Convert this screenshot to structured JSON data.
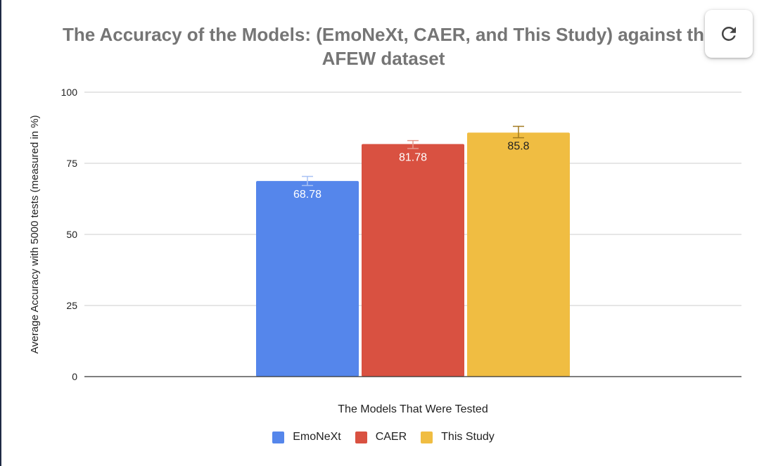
{
  "chart_data": {
    "type": "bar",
    "title_lines": [
      "The Accuracy of the Models: (EmoNeXt, CAER, and This Study) against th",
      "AFEW dataset"
    ],
    "xlabel": "The Models That Were Tested",
    "ylabel": "Average Accuracy with 5000 tests (measured in %)",
    "ylim": [
      0,
      100
    ],
    "yticks": [
      "0",
      "25",
      "50",
      "75",
      "100"
    ],
    "ytick_values": [
      0,
      25,
      50,
      75,
      100
    ],
    "grid": true,
    "legend_position": "bottom",
    "series": [
      {
        "name": "EmoNeXt",
        "value": 68.78,
        "label": "68.78",
        "error": [
          67.2,
          70.4
        ],
        "color": "#5586eb",
        "error_color": "#a9c2f4"
      },
      {
        "name": "CAER",
        "value": 81.78,
        "label": "81.78",
        "error": [
          80.2,
          83.0
        ],
        "color": "#d95141",
        "error_color": "#e59a8e"
      },
      {
        "name": "This Study",
        "value": 85.8,
        "label": "85.8",
        "error": [
          84.0,
          88.0
        ],
        "color": "#f0bd42",
        "error_color": "#a27a20"
      }
    ]
  },
  "controls": {
    "refresh_icon": "refresh-icon"
  }
}
